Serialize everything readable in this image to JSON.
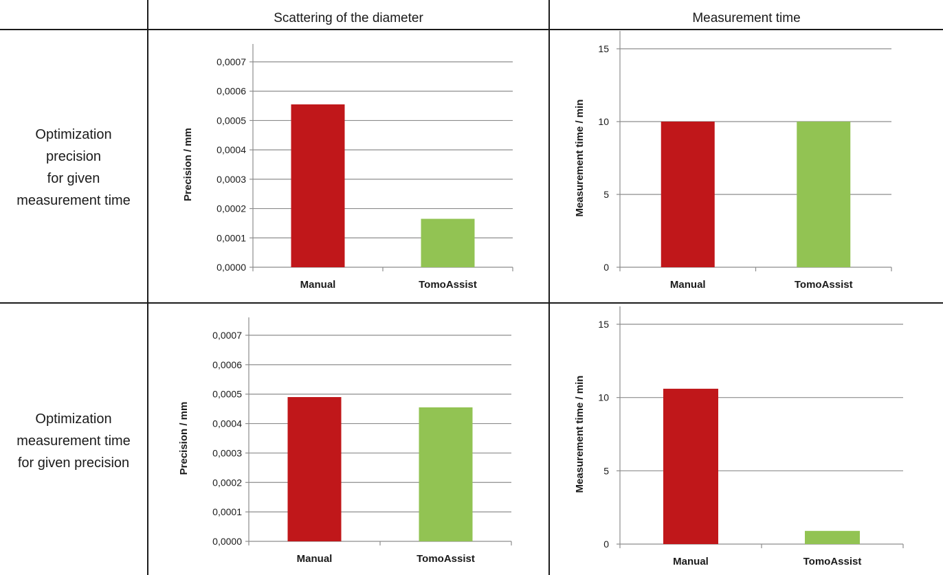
{
  "columns": [
    "Scattering of the diameter",
    "Measurement time"
  ],
  "rows": [
    {
      "lines": [
        "Optimization",
        "precision",
        "for given",
        "measurement time"
      ]
    },
    {
      "lines": [
        "Optimization",
        "measurement time",
        "for given precision"
      ]
    }
  ],
  "colors": {
    "manual": "#c0171a",
    "tomoassist": "#92c353",
    "grid": "#8c8c8c",
    "axis": "#8c8c8c",
    "frame": "#1a1a1a"
  },
  "chart_data": [
    {
      "type": "bar",
      "categories": [
        "Manual",
        "TomoAssist"
      ],
      "values": [
        0.000555,
        0.000165
      ],
      "ylabel": "Precision / mm",
      "ylim": [
        0,
        0.0007
      ],
      "yticks": [
        0,
        0.0001,
        0.0002,
        0.0003,
        0.0004,
        0.0005,
        0.0006,
        0.0007
      ],
      "ytick_labels": [
        "0,0000",
        "0,0001",
        "0,0002",
        "0,0003",
        "0,0004",
        "0,0005",
        "0,0006",
        "0,0007"
      ],
      "bar_colors": [
        "#c0171a",
        "#92c353"
      ],
      "grid": true
    },
    {
      "type": "bar",
      "categories": [
        "Manual",
        "TomoAssist"
      ],
      "values": [
        10,
        10
      ],
      "ylabel": "Measurement time / min",
      "ylim": [
        0,
        15
      ],
      "yticks": [
        0,
        5,
        10,
        15
      ],
      "ytick_labels": [
        "0",
        "5",
        "10",
        "15"
      ],
      "bar_colors": [
        "#c0171a",
        "#92c353"
      ],
      "grid": true
    },
    {
      "type": "bar",
      "categories": [
        "Manual",
        "TomoAssist"
      ],
      "values": [
        0.00049,
        0.000455
      ],
      "ylabel": "Precision / mm",
      "ylim": [
        0,
        0.0007
      ],
      "yticks": [
        0,
        0.0001,
        0.0002,
        0.0003,
        0.0004,
        0.0005,
        0.0006,
        0.0007
      ],
      "ytick_labels": [
        "0,0000",
        "0,0001",
        "0,0002",
        "0,0003",
        "0,0004",
        "0,0005",
        "0,0006",
        "0,0007"
      ],
      "bar_colors": [
        "#c0171a",
        "#92c353"
      ],
      "grid": true
    },
    {
      "type": "bar",
      "categories": [
        "Manual",
        "TomoAssist"
      ],
      "values": [
        10.6,
        0.9
      ],
      "ylabel": "Measurement time / min",
      "ylim": [
        0,
        15
      ],
      "yticks": [
        0,
        5,
        10,
        15
      ],
      "ytick_labels": [
        "0",
        "5",
        "10",
        "15"
      ],
      "bar_colors": [
        "#c0171a",
        "#92c353"
      ],
      "grid": true
    }
  ]
}
